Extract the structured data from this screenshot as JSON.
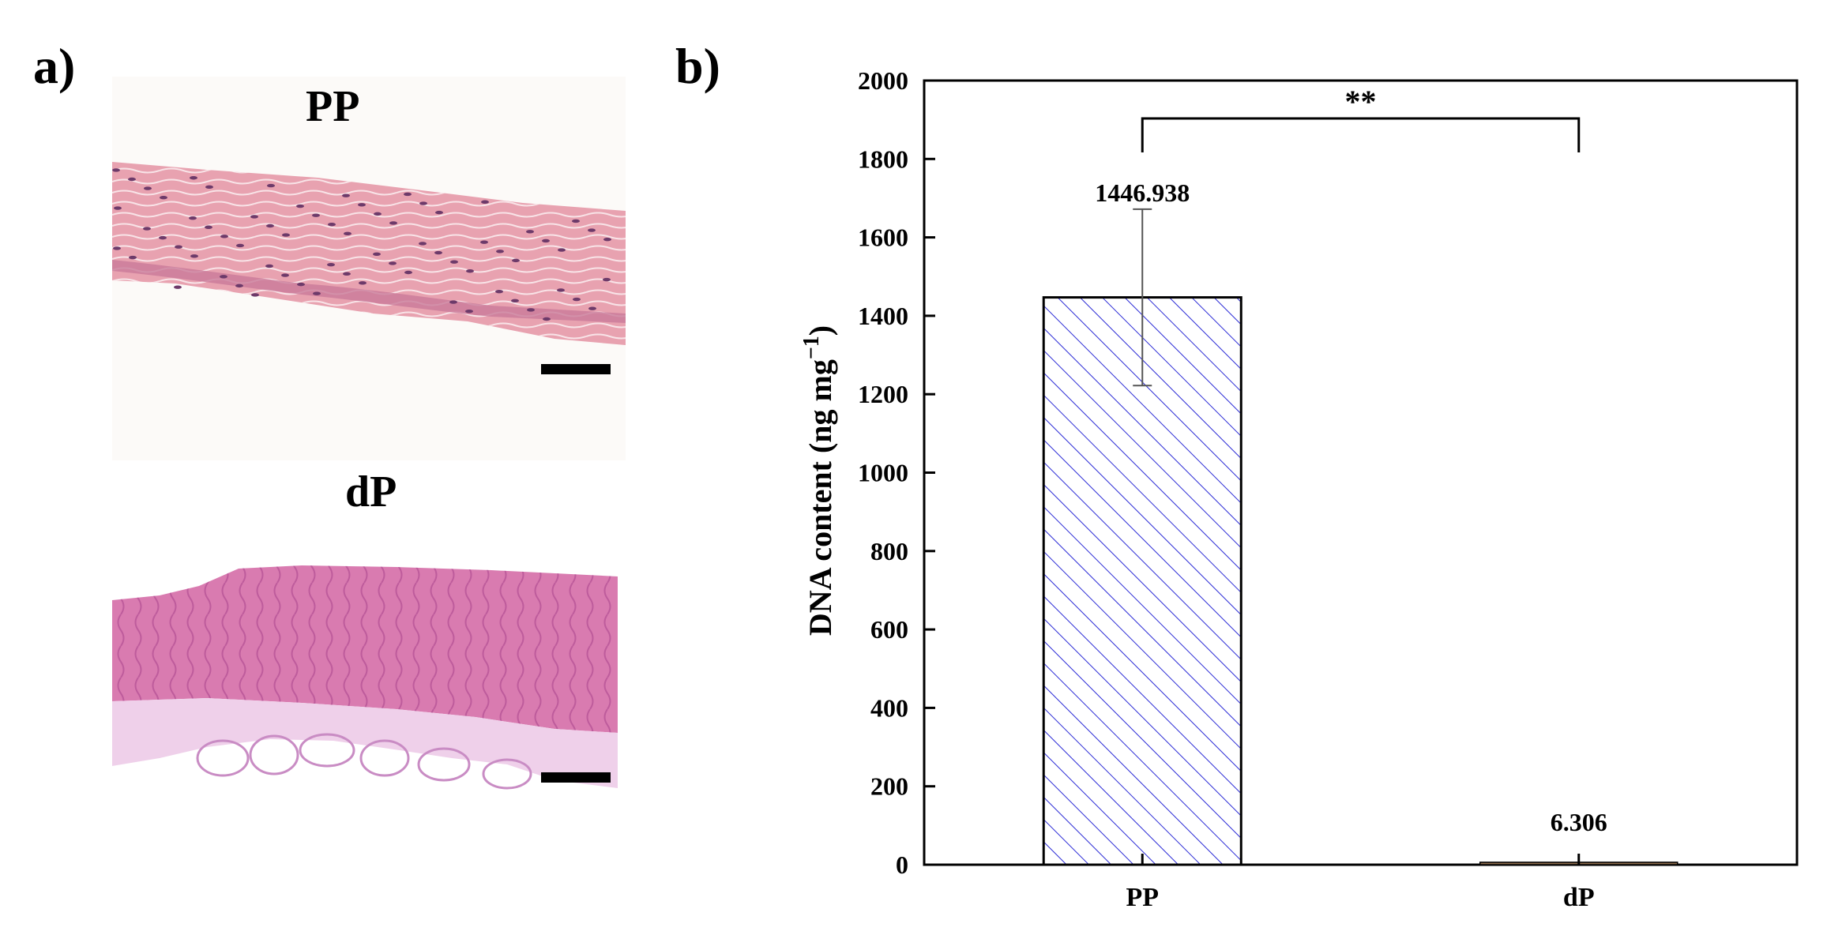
{
  "panel_a": {
    "letter": "a)",
    "images": [
      {
        "label": "PP",
        "stain_color": "#e8a2b0",
        "nuclei_color": "#6d3a6a"
      },
      {
        "label": "dP",
        "stain_color": "#d97bb0",
        "nuclei_color": "#7a3d7a"
      }
    ]
  },
  "panel_b": {
    "letter": "b)"
  },
  "chart_data": {
    "type": "bar",
    "categories": [
      "PP",
      "dP"
    ],
    "values": [
      1446.938,
      6.306
    ],
    "error": [
      225,
      0
    ],
    "value_labels": [
      "1446.938",
      "6.306"
    ],
    "ylabel": "DNA content (ng mg⁻¹)",
    "ylabel_main": "DNA content (ng mg",
    "ylabel_sup": "−1",
    "ylabel_close": ")",
    "xlabel": "",
    "ylim": [
      0,
      2000
    ],
    "yticks": [
      0,
      200,
      400,
      600,
      800,
      1000,
      1200,
      1400,
      1600,
      1800,
      2000
    ],
    "significance": {
      "between": [
        "PP",
        "dP"
      ],
      "label": "**"
    },
    "bar_fill": "hatched",
    "hatch_color": "#2b2bd6",
    "dp_bar_color": "#8b6b4a",
    "grid": false,
    "legend": "none"
  }
}
